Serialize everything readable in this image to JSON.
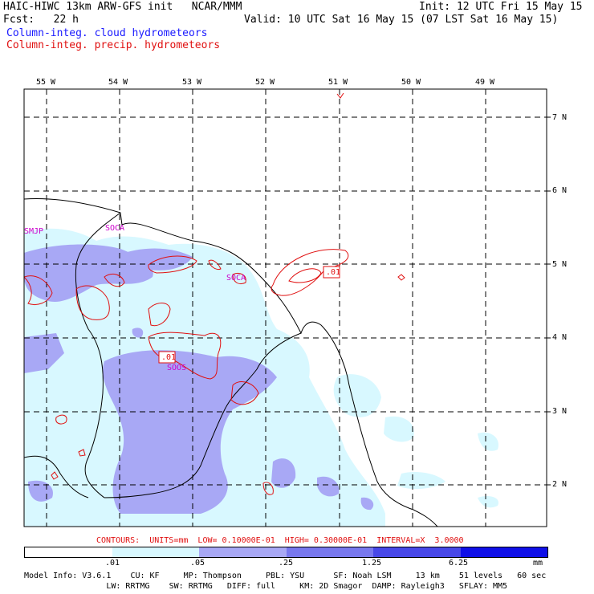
{
  "header": {
    "model_title": "HAIC-HIWC 13km ARW-GFS init   NCAR/MMM",
    "init": "Init: 12 UTC Fri 15 May 15",
    "fcst": "Fcst:   22 h",
    "valid": "Valid: 10 UTC Sat 16 May 15 (07 LST Sat 16 May 15)",
    "field1": "Column-integ. cloud hydrometeors",
    "field2": "Column-integ. precip. hydrometeors"
  },
  "map": {
    "lon_labels": [
      "55 W",
      "54 W",
      "53 W",
      "52 W",
      "51 W",
      "50 W",
      "49 W"
    ],
    "lat_labels": [
      "7 N",
      "6 N",
      "5 N",
      "4 N",
      "3 N",
      "2 N"
    ],
    "stations": [
      "SMJP",
      "SOCA",
      "SOCA",
      "SOOS"
    ],
    "contour_labels": [
      ".01",
      ".01"
    ],
    "colors": {
      "shade_light": "#d8f8ff",
      "shade_mid": "#a8a8f5",
      "contour": "#e01010",
      "station": "#cc00cc"
    }
  },
  "contours_info": "CONTOURS:  UNITS=mm  LOW= 0.10000E-01  HIGH= 0.30000E-01  INTERVAL=X  3.0000",
  "colorbar": {
    "labels": [
      ".01",
      ".05",
      ".25",
      "1.25",
      "6.25"
    ],
    "unit": "mm",
    "colors": [
      "#ffffff",
      "#d8f8ff",
      "#a8a8f5",
      "#7878ee",
      "#4848e8",
      "#1010e8"
    ]
  },
  "footer": {
    "line1": "Model Info: V3.6.1    CU: KF     MP: Thompson     PBL: YSU      SF: Noah LSM     13 km    51 levels   60 sec",
    "line2": "                 LW: RRTMG    SW: RRTMG   DIFF: full     KM: 2D Smagor  DAMP: Rayleigh3   SFLAY: MM5"
  }
}
